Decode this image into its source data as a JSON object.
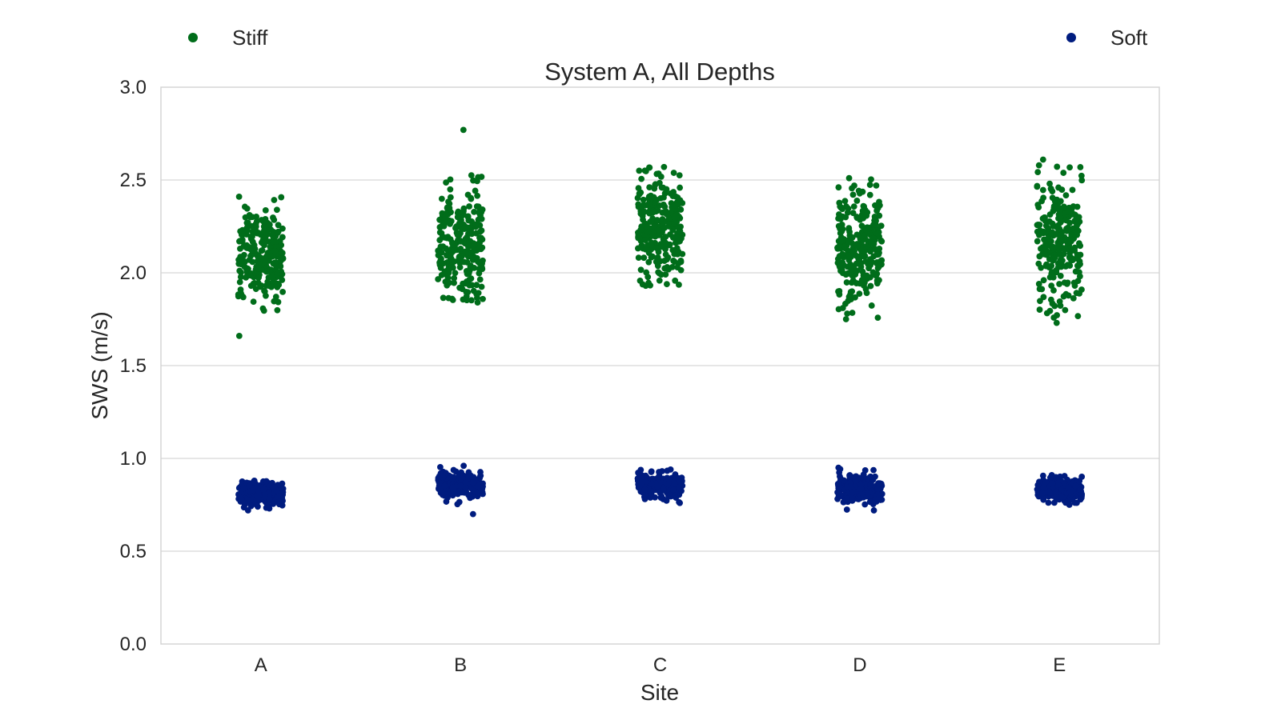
{
  "chart_data": {
    "type": "scatter",
    "title": "System A, All Depths",
    "xlabel": "Site",
    "ylabel": "SWS (m/s)",
    "categories": [
      "A",
      "B",
      "C",
      "D",
      "E"
    ],
    "ylim": [
      0,
      3
    ],
    "yticks": [
      "0.0",
      "0.5",
      "1.0",
      "1.5",
      "2.0",
      "2.5",
      "3.0"
    ],
    "grid": true,
    "jitter": "strip plot with horizontal jitter",
    "legend": {
      "placement": "top-left and top-right",
      "entries": [
        "Stiff",
        "Soft"
      ]
    },
    "series": [
      {
        "name": "Stiff",
        "color": "#006d1a",
        "groups": [
          {
            "site": "A",
            "min": 1.66,
            "max": 2.41,
            "center": 2.1,
            "spread": 0.14,
            "count": 260
          },
          {
            "site": "B",
            "min": 1.84,
            "max": 2.77,
            "center": 2.16,
            "spread": 0.14,
            "count": 260
          },
          {
            "site": "C",
            "min": 1.93,
            "max": 2.57,
            "center": 2.25,
            "spread": 0.15,
            "count": 260
          },
          {
            "site": "D",
            "min": 1.75,
            "max": 2.51,
            "center": 2.14,
            "spread": 0.15,
            "count": 260
          },
          {
            "site": "E",
            "min": 1.73,
            "max": 2.61,
            "center": 2.17,
            "spread": 0.18,
            "count": 260
          }
        ]
      },
      {
        "name": "Soft",
        "color": "#001c7f",
        "groups": [
          {
            "site": "A",
            "min": 0.72,
            "max": 0.88,
            "center": 0.81,
            "spread": 0.035,
            "count": 230
          },
          {
            "site": "B",
            "min": 0.7,
            "max": 0.96,
            "center": 0.86,
            "spread": 0.04,
            "count": 230
          },
          {
            "site": "C",
            "min": 0.76,
            "max": 0.94,
            "center": 0.85,
            "spread": 0.035,
            "count": 230
          },
          {
            "site": "D",
            "min": 0.72,
            "max": 0.95,
            "center": 0.84,
            "spread": 0.04,
            "count": 230
          },
          {
            "site": "E",
            "min": 0.75,
            "max": 0.91,
            "center": 0.83,
            "spread": 0.03,
            "count": 230
          }
        ]
      }
    ]
  }
}
